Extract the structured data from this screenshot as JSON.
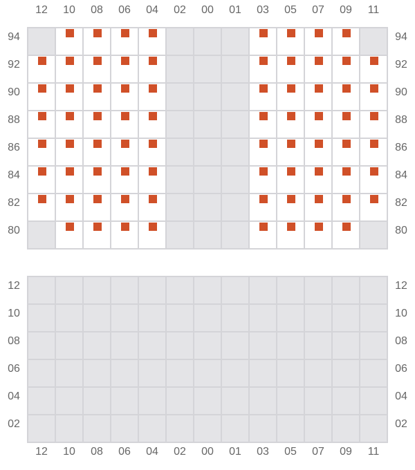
{
  "columns": [
    "12",
    "10",
    "08",
    "06",
    "04",
    "02",
    "00",
    "01",
    "03",
    "05",
    "07",
    "09",
    "11"
  ],
  "colors": {
    "marker": "#d05028",
    "unavailable": "#e4e4e7",
    "available": "#ffffff",
    "gridline": "#d4d4d8"
  },
  "top_section": {
    "rows": [
      "94",
      "92",
      "90",
      "88",
      "86",
      "84",
      "82",
      "80"
    ],
    "unavailable_columns_all_rows": [
      "02",
      "00",
      "01"
    ],
    "unavailable_cells": [
      [
        "94",
        "12"
      ],
      [
        "94",
        "11"
      ],
      [
        "80",
        "12"
      ],
      [
        "80",
        "11"
      ]
    ],
    "marked": "all available cells"
  },
  "bottom_section": {
    "rows": [
      "12",
      "10",
      "08",
      "06",
      "04",
      "02"
    ],
    "unavailable": "all cells"
  }
}
